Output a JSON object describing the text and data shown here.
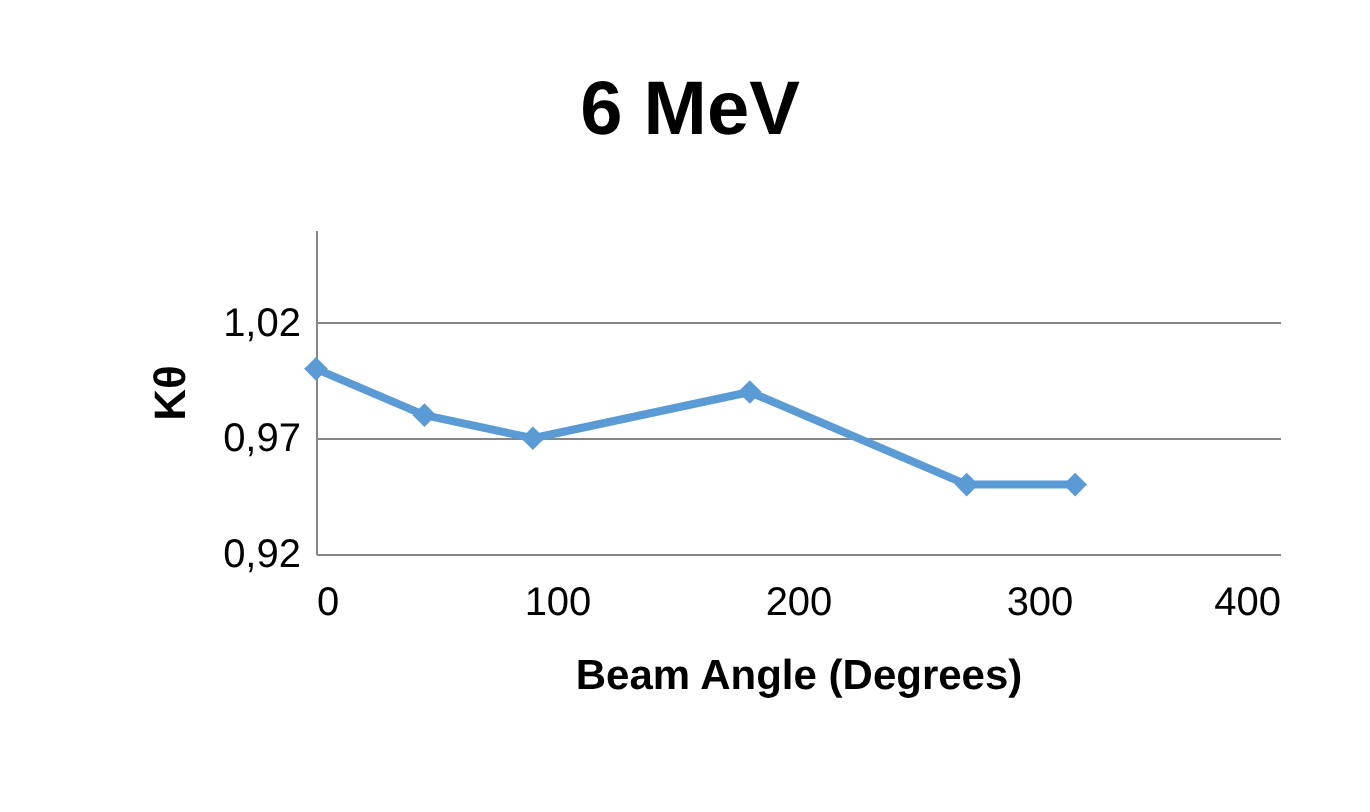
{
  "chart_data": {
    "type": "line",
    "title": "6 MeV",
    "xlabel": "Beam Angle (Degrees)",
    "ylabel": "Kθ",
    "x": [
      0,
      45,
      90,
      180,
      270,
      315
    ],
    "series": [
      {
        "color": "#5b9bd5",
        "values": [
          1.0,
          0.98,
          0.97,
          0.99,
          0.95,
          0.95
        ]
      }
    ],
    "xlim": [
      0,
      400
    ],
    "xticks": [
      0,
      100,
      200,
      300,
      400
    ],
    "ylim": [
      0.92,
      1.06
    ],
    "yticks": [
      {
        "value": 0.92,
        "label": "0,92"
      },
      {
        "value": 0.97,
        "label": "0,97"
      },
      {
        "value": 1.02,
        "label": "1,02"
      }
    ],
    "grid": "y",
    "marker": "diamond"
  }
}
